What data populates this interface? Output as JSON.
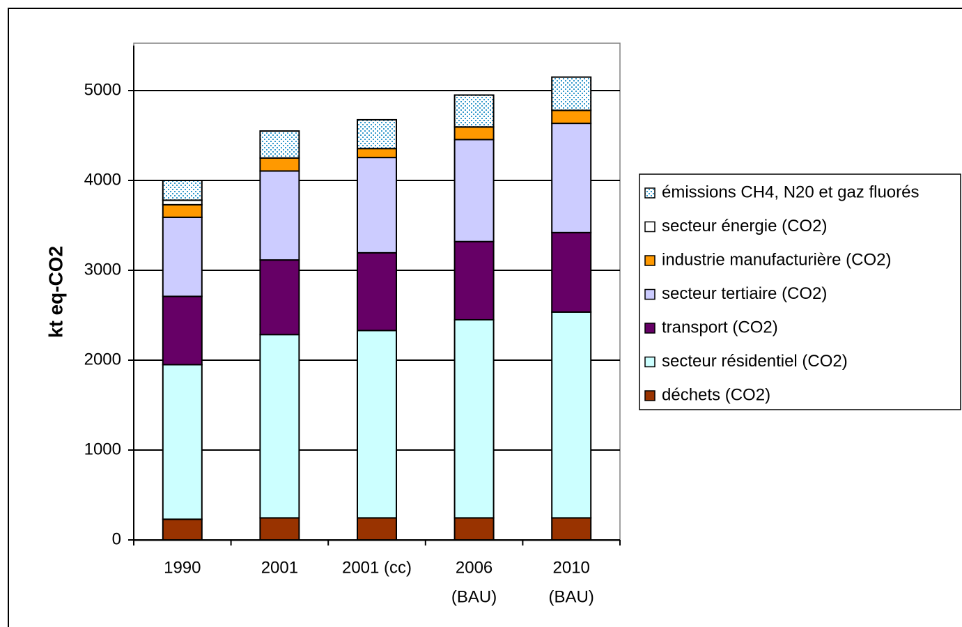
{
  "chart_data": {
    "type": "bar",
    "stacked": true,
    "ylabel": "kt eq-CO2",
    "ylim": [
      0,
      5500
    ],
    "yticks": [
      0,
      1000,
      2000,
      3000,
      4000,
      5000
    ],
    "grid": true,
    "legend_position": "right",
    "categories": [
      [
        "1990"
      ],
      [
        "2001"
      ],
      [
        "2001 (cc)"
      ],
      [
        "2006",
        "(BAU)"
      ],
      [
        "2010",
        "(BAU)"
      ]
    ],
    "series": [
      {
        "name": "déchets (CO2)",
        "color": "#993300",
        "pattern": "solid",
        "values": [
          230,
          245,
          245,
          245,
          245
        ]
      },
      {
        "name": "secteur résidentiel (CO2)",
        "color": "#ccffff",
        "pattern": "solid",
        "values": [
          1720,
          2040,
          2085,
          2205,
          2290
        ]
      },
      {
        "name": "transport (CO2)",
        "color": "#660066",
        "pattern": "solid",
        "values": [
          760,
          830,
          865,
          870,
          885
        ]
      },
      {
        "name": "secteur tertiaire (CO2)",
        "color": "#ccccff",
        "pattern": "solid",
        "values": [
          880,
          990,
          1060,
          1135,
          1215
        ]
      },
      {
        "name": "industrie manufacturière (CO2)",
        "color": "#ff9900",
        "pattern": "solid",
        "values": [
          140,
          145,
          100,
          140,
          145
        ]
      },
      {
        "name": "secteur énergie (CO2)",
        "color": "#ffffff",
        "pattern": "solid",
        "values": [
          50,
          0,
          0,
          0,
          0
        ]
      },
      {
        "name": "émissions CH4, N20 et gaz fluorés",
        "color": "#ffffff",
        "pattern": "dots",
        "dot_color": "#3399cc",
        "values": [
          220,
          300,
          320,
          355,
          370
        ]
      }
    ],
    "legend_order": [
      "émissions CH4, N20 et gaz fluorés",
      "secteur énergie (CO2)",
      "industrie manufacturière (CO2)",
      "secteur tertiaire (CO2)",
      "transport (CO2)",
      "secteur résidentiel (CO2)",
      "déchets (CO2)"
    ]
  }
}
